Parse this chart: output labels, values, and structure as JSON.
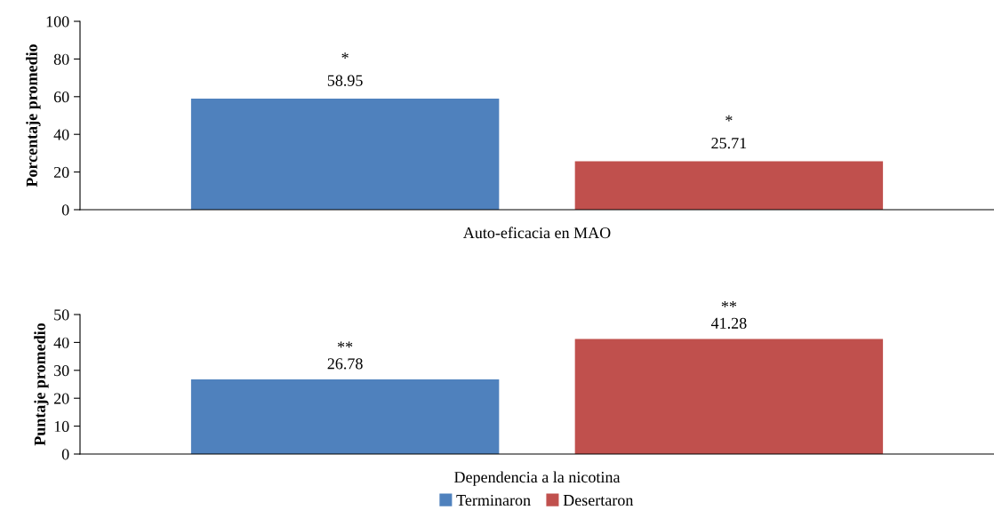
{
  "chart_data": [
    {
      "type": "bar",
      "categories": [
        "Auto-eficacia en MAO"
      ],
      "ylabel": "Porcentaje promedio",
      "ylim": [
        0,
        100
      ],
      "yticks": [
        0,
        20,
        40,
        60,
        80,
        100
      ],
      "data_labels": true,
      "grid": false,
      "legend": "bottom",
      "series": [
        {
          "name": "Terminaron",
          "color": "#4f81bd",
          "values": [
            58.95
          ]
        },
        {
          "name": "Desertaron",
          "color": "#c0504d",
          "values": [
            25.71
          ]
        }
      ],
      "annotations": [
        "*",
        "*"
      ]
    },
    {
      "type": "bar",
      "categories": [
        "Dependencia a la nicotina"
      ],
      "ylabel": "Puntaje promedio",
      "ylim": [
        0,
        50
      ],
      "yticks": [
        0,
        10,
        20,
        30,
        40,
        50
      ],
      "data_labels": true,
      "grid": false,
      "series": [
        {
          "color": "#4f81bd",
          "values": [
            26.78
          ]
        },
        {
          "color": "#c0504d",
          "values": [
            41.28
          ]
        }
      ],
      "annotations": [
        "**",
        "**"
      ]
    }
  ]
}
